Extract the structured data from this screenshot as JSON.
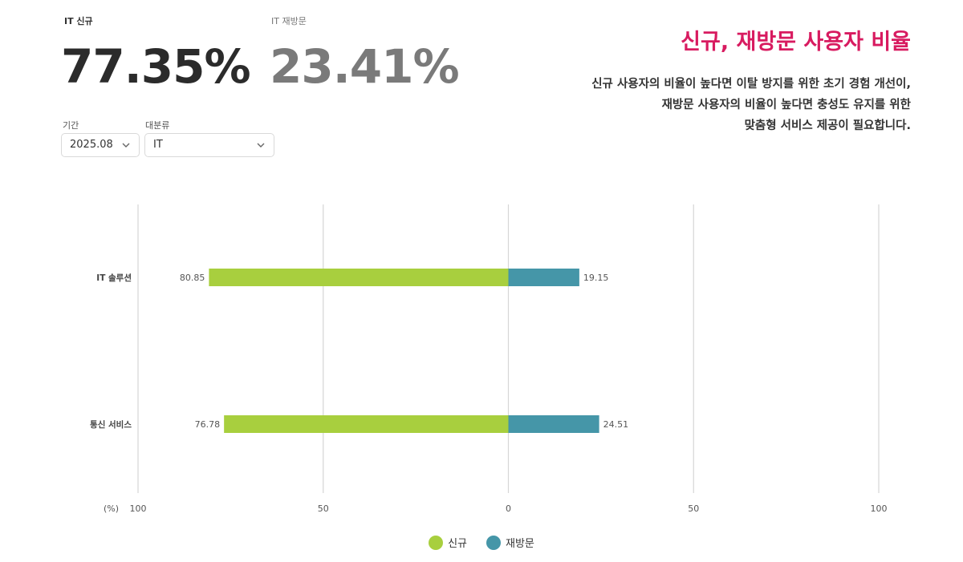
{
  "stats": [
    {
      "label": "IT 신규",
      "value": "77.35%",
      "color": "#2b2b2b"
    },
    {
      "label": "IT 재방문",
      "value": "23.41%",
      "color": "#7a7a7a"
    }
  ],
  "filters": {
    "period_label": "기간",
    "period_value": "2025.08",
    "category_label": "대분류",
    "category_value": "IT"
  },
  "header": {
    "title": "신규, 재방문 사용자 비율",
    "desc_lines": [
      "신규 사용자의 비율이 높다면 이탈 방지를 위한 초기 경험 개선이,",
      "재방문 사용자의 비율이 높다면 충성도 유지를 위한",
      "맞춤형 서비스 제공이 필요합니다."
    ]
  },
  "chart_data": {
    "type": "bar",
    "orientation": "horizontal-diverging",
    "categories": [
      "IT 솔루션",
      "통신 서비스"
    ],
    "series": [
      {
        "name": "신규",
        "values": [
          80.85,
          76.78
        ],
        "color": "#a8cf3e"
      },
      {
        "name": "재방문",
        "values": [
          19.15,
          24.51
        ],
        "color": "#4596a8"
      }
    ],
    "unit_label": "(%)",
    "x_ticks": [
      "100",
      "50",
      "0",
      "50",
      "100"
    ],
    "xlim": [
      -100,
      100
    ],
    "grid": true,
    "legend_position": "bottom"
  }
}
